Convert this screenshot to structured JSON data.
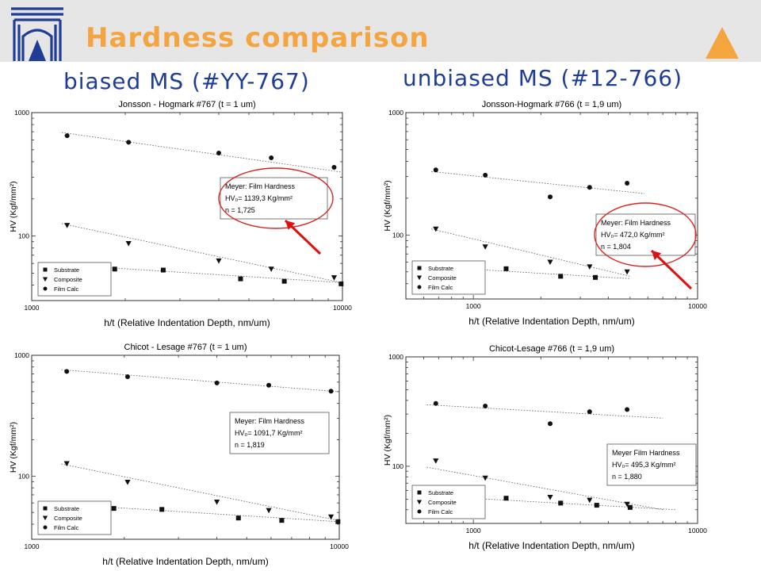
{
  "header": {
    "title": "Hardness comparison",
    "subtitle_left": "biased MS (#YY-767)",
    "subtitle_right": "unbiased MS (#12-766)",
    "accent_color": "#f5a540",
    "subtitle_color": "#1f3c96",
    "logo_color": "#1f3c96"
  },
  "chart_data": [
    {
      "type": "scatter",
      "title": "Jonsson - Hogmark #767 (t = 1 um)",
      "xlabel": "h/t (Relative Indentation Depth, nm/um)",
      "ylabel": "HV (Kgf/mm²)",
      "x_scale": "log",
      "y_scale": "log",
      "xlim": [
        1000,
        10000
      ],
      "ylim": [
        30,
        1000
      ],
      "x_ticks": [
        "1000",
        "10000"
      ],
      "y_ticks": [
        "1000",
        "100"
      ],
      "legend_position": "lower-left",
      "series": [
        {
          "name": "Substrate",
          "marker": "square",
          "x": [
            1850,
            2650,
            4700,
            6500,
            9900
          ],
          "y": [
            54,
            53,
            45,
            43,
            41
          ],
          "fit": [
            [
              1650,
              56
            ],
            [
              9900,
              42
            ]
          ]
        },
        {
          "name": "Composite",
          "marker": "triangle",
          "x": [
            1300,
            2050,
            4000,
            5900,
            9400
          ],
          "y": [
            122,
            87,
            63,
            54,
            46
          ],
          "fit": [
            [
              1250,
              126
            ],
            [
              9900,
              42
            ]
          ]
        },
        {
          "name": "Film Calc",
          "marker": "circle",
          "x": [
            1300,
            2050,
            4000,
            5900,
            9400
          ],
          "y": [
            650,
            575,
            470,
            430,
            360
          ],
          "fit": [
            [
              1250,
              690
            ],
            [
              9900,
              330
            ]
          ]
        }
      ],
      "annotation": {
        "heading": "Meyer: Film Hardness",
        "hv": "HV₀= 1139,3 Kg/mm²",
        "n": "n = 1,725"
      },
      "highlighted": true
    },
    {
      "type": "scatter",
      "title": "Jonsson-Hogmark #766 (t = 1,9 um)",
      "xlabel": "h/t (Relative Indentation Depth, nm/um)",
      "ylabel": "HV (Kgf/mm²)",
      "x_scale": "log",
      "y_scale": "log",
      "xlim": [
        500,
        10000
      ],
      "ylim": [
        30,
        1000
      ],
      "x_ticks": [
        "1000",
        "10000"
      ],
      "y_ticks": [
        "1000",
        "100"
      ],
      "legend_position": "lower-left",
      "series": [
        {
          "name": "Substrate",
          "marker": "square",
          "x": [
            1000,
            1400,
            2450,
            3500
          ],
          "y": [
            54,
            53,
            46,
            45
          ],
          "fit": [
            [
              650,
              55
            ],
            [
              5000,
              44
            ]
          ]
        },
        {
          "name": "Composite",
          "marker": "triangle",
          "x": [
            680,
            1130,
            2200,
            3300,
            4850
          ],
          "y": [
            112,
            80,
            60,
            55,
            50
          ],
          "fit": [
            [
              650,
              112
            ],
            [
              5000,
              46
            ]
          ]
        },
        {
          "name": "Film Calc",
          "marker": "circle",
          "x": [
            680,
            1130,
            2200,
            3300,
            4850
          ],
          "y": [
            340,
            308,
            205,
            245,
            265
          ],
          "fit": [
            [
              650,
              330
            ],
            [
              5800,
              218
            ]
          ]
        }
      ],
      "annotation": {
        "heading": "Meyer: Film Hardness",
        "hv": "HV₀= 472,0 Kg/mm²",
        "n": "n = 1,804"
      },
      "highlighted": true
    },
    {
      "type": "scatter",
      "title": "Chicot - Lesage #767 (t = 1 um)",
      "xlabel": "h/t (Relative Indentation Depth, nm/um)",
      "ylabel": "HV (Kgf/mm²)",
      "x_scale": "log",
      "y_scale": "log",
      "xlim": [
        1000,
        10000
      ],
      "ylim": [
        30,
        1000
      ],
      "x_ticks": [
        "1000",
        "10000"
      ],
      "y_ticks": [
        "1000",
        "100"
      ],
      "legend_position": "lower-left",
      "series": [
        {
          "name": "Substrate",
          "marker": "square",
          "x": [
            1850,
            2650,
            4700,
            6500,
            9900
          ],
          "y": [
            54,
            53,
            45,
            43,
            42
          ],
          "fit": [
            [
              1650,
              56
            ],
            [
              9900,
              42
            ]
          ]
        },
        {
          "name": "Composite",
          "marker": "triangle",
          "x": [
            1300,
            2050,
            4000,
            5900,
            9400
          ],
          "y": [
            127,
            89,
            61,
            52,
            46
          ],
          "fit": [
            [
              1250,
              126
            ],
            [
              9900,
              43
            ]
          ]
        },
        {
          "name": "Film Calc",
          "marker": "circle",
          "x": [
            1300,
            2050,
            4000,
            5900,
            9400
          ],
          "y": [
            735,
            665,
            590,
            565,
            505
          ],
          "fit": [
            [
              1250,
              760
            ],
            [
              9900,
              500
            ]
          ]
        }
      ],
      "annotation": {
        "heading": "Meyer: Film Hardness",
        "hv": "HV₀= 1091,7 Kg/mm²",
        "n": "n = 1,819"
      },
      "highlighted": false
    },
    {
      "type": "scatter",
      "title": "Chicot-Lesage #766 (t = 1,9 um)",
      "xlabel": "h/t (Relative Indentation Depth, nm/um)",
      "ylabel": "HV (Kgf/mm²)",
      "x_scale": "log",
      "y_scale": "log",
      "xlim": [
        500,
        10000
      ],
      "ylim": [
        30,
        1000
      ],
      "x_ticks": [
        "1000",
        "10000"
      ],
      "y_ticks": [
        "1000",
        "100"
      ],
      "legend_position": "lower-left",
      "series": [
        {
          "name": "Substrate",
          "marker": "square",
          "x": [
            1000,
            1400,
            2450,
            3550,
            5000
          ],
          "y": [
            52,
            51,
            46,
            44,
            42
          ],
          "fit": [
            [
              700,
              53
            ],
            [
              8000,
              40
            ]
          ]
        },
        {
          "name": "Composite",
          "marker": "triangle",
          "x": [
            680,
            1130,
            2200,
            3300,
            4850
          ],
          "y": [
            112,
            78,
            52,
            49,
            45
          ],
          "fit": [
            [
              620,
              98
            ],
            [
              7000,
              40
            ]
          ]
        },
        {
          "name": "Film Calc",
          "marker": "circle",
          "x": [
            680,
            1130,
            2200,
            3300,
            4850
          ],
          "y": [
            375,
            355,
            245,
            315,
            330
          ],
          "fit": [
            [
              620,
              365
            ],
            [
              7000,
              275
            ]
          ]
        }
      ],
      "annotation": {
        "heading": "Meyer Film Hardness",
        "hv": "HV₀= 495,3 Kg/mm²",
        "n": "n = 1,880"
      },
      "highlighted": false
    }
  ]
}
